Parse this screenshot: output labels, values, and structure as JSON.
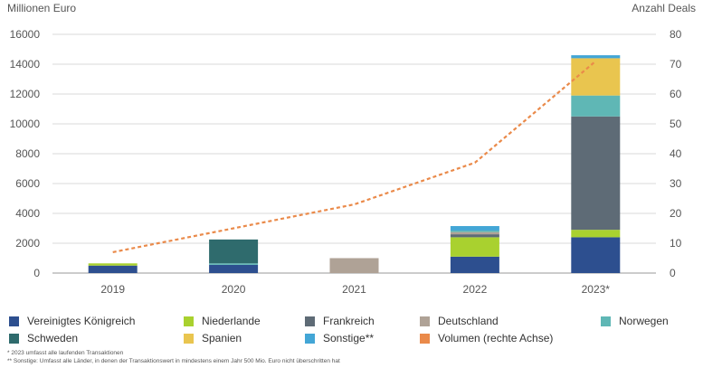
{
  "chart_data": {
    "type": "bar",
    "stacked": true,
    "categories": [
      "2019",
      "2020",
      "2021",
      "2022",
      "2023*"
    ],
    "ylabel_left": "Millionen Euro",
    "ylabel_right": "Anzahl Deals",
    "ylim_left": [
      0,
      16000
    ],
    "yticks_left": [
      "0",
      "2000",
      "4000",
      "6000",
      "8000",
      "10000",
      "12000",
      "14000",
      "16000"
    ],
    "ylim_right": [
      0,
      80
    ],
    "yticks_right": [
      "0",
      "10",
      "20",
      "30",
      "40",
      "50",
      "60",
      "70",
      "80"
    ],
    "grid": true,
    "series": [
      {
        "name": "Vereinigtes Königreich",
        "color": "#2d4f8f",
        "values": [
          500,
          550,
          0,
          1100,
          2400
        ]
      },
      {
        "name": "Niederlande",
        "color": "#a9d12f",
        "values": [
          150,
          0,
          0,
          1300,
          500
        ]
      },
      {
        "name": "Frankreich",
        "color": "#5e6b76",
        "values": [
          0,
          0,
          0,
          200,
          7600
        ]
      },
      {
        "name": "Deutschland",
        "color": "#afa296",
        "values": [
          0,
          0,
          1000,
          150,
          0
        ]
      },
      {
        "name": "Norwegen",
        "color": "#5fb7b5",
        "values": [
          0,
          100,
          0,
          100,
          1400
        ]
      },
      {
        "name": "Schweden",
        "color": "#2f6b6d",
        "values": [
          0,
          1600,
          0,
          0,
          0
        ]
      },
      {
        "name": "Spanien",
        "color": "#e9c54f",
        "values": [
          0,
          0,
          0,
          0,
          2500
        ]
      },
      {
        "name": "Sonstige**",
        "color": "#43a6d6",
        "values": [
          0,
          0,
          0,
          300,
          200
        ]
      }
    ],
    "line": {
      "name": "Volumen (rechte Achse)",
      "color": "#ea8a4a",
      "axis": "right",
      "style": "dashed",
      "values": [
        7,
        15,
        23,
        37,
        71
      ]
    },
    "legend_position": "bottom",
    "footnotes": [
      "* 2023 umfasst alle laufenden Transaktionen",
      "** Sonstige: Umfasst alle Länder, in denen der Transaktionswert in mindestens einem Jahr 500 Mio. Euro nicht überschritten hat"
    ]
  },
  "legend": {
    "row1": [
      {
        "label": "Vereinigtes Königreich",
        "color": "#2d4f8f"
      },
      {
        "label": "Niederlande",
        "color": "#a9d12f"
      },
      {
        "label": "Frankreich",
        "color": "#5e6b76"
      },
      {
        "label": "Deutschland",
        "color": "#afa296"
      },
      {
        "label": "Norwegen",
        "color": "#5fb7b5"
      }
    ],
    "row2": [
      {
        "label": "Schweden",
        "color": "#2f6b6d"
      },
      {
        "label": "Spanien",
        "color": "#e9c54f"
      },
      {
        "label": "Sonstige**",
        "color": "#43a6d6"
      },
      {
        "label": "Volumen (rechte Achse)",
        "color": "#ea8a4a"
      }
    ]
  }
}
